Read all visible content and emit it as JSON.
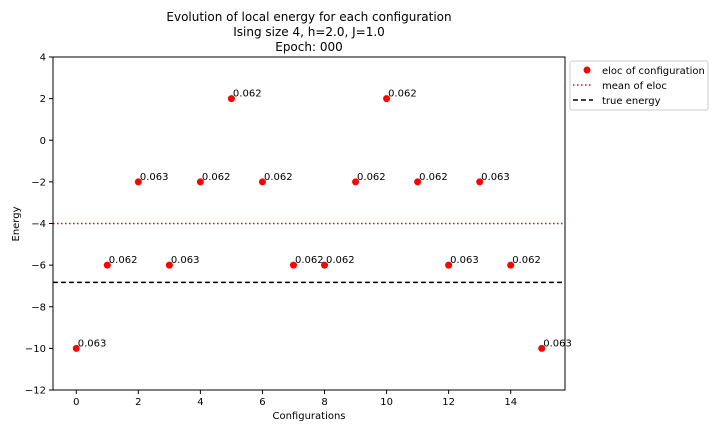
{
  "chart_data": {
    "type": "scatter",
    "title_lines": [
      "Evolution of local energy for each configuration",
      "Ising size 4, h=2.0, J=1.0",
      "Epoch: 000"
    ],
    "xlabel": "Configurations",
    "ylabel": "Energy",
    "xlim": [
      -0.75,
      15.75
    ],
    "ylim": [
      -12,
      4
    ],
    "xticks": [
      0,
      2,
      4,
      6,
      8,
      10,
      12,
      14
    ],
    "yticks": [
      -12,
      -10,
      -8,
      -6,
      -4,
      -2,
      0,
      2,
      4
    ],
    "grid": false,
    "legend_position": "outside-top-right",
    "series": [
      {
        "name": "eloc of configuration",
        "style": "points",
        "color": "#ff0000",
        "x": [
          0,
          1,
          2,
          3,
          4,
          5,
          6,
          7,
          8,
          9,
          10,
          11,
          12,
          13,
          14,
          15
        ],
        "y": [
          -10,
          -6,
          -2,
          -6,
          -2,
          2,
          -2,
          -6,
          -6,
          -2,
          2,
          -2,
          -6,
          -2,
          -6,
          -10
        ],
        "labels": [
          "0.063",
          "0.062",
          "0.063",
          "0.063",
          "0.062",
          "0.062",
          "0.062",
          "0.062",
          "0.062",
          "0.062",
          "0.062",
          "0.062",
          "0.063",
          "0.063",
          "0.062",
          "0.063"
        ]
      },
      {
        "name": "mean of eloc",
        "style": "dotted-hline",
        "color": "#ff0000",
        "y": -4
      },
      {
        "name": "true energy",
        "style": "dashed-hline",
        "color": "#000000",
        "y": -6.83
      }
    ]
  }
}
